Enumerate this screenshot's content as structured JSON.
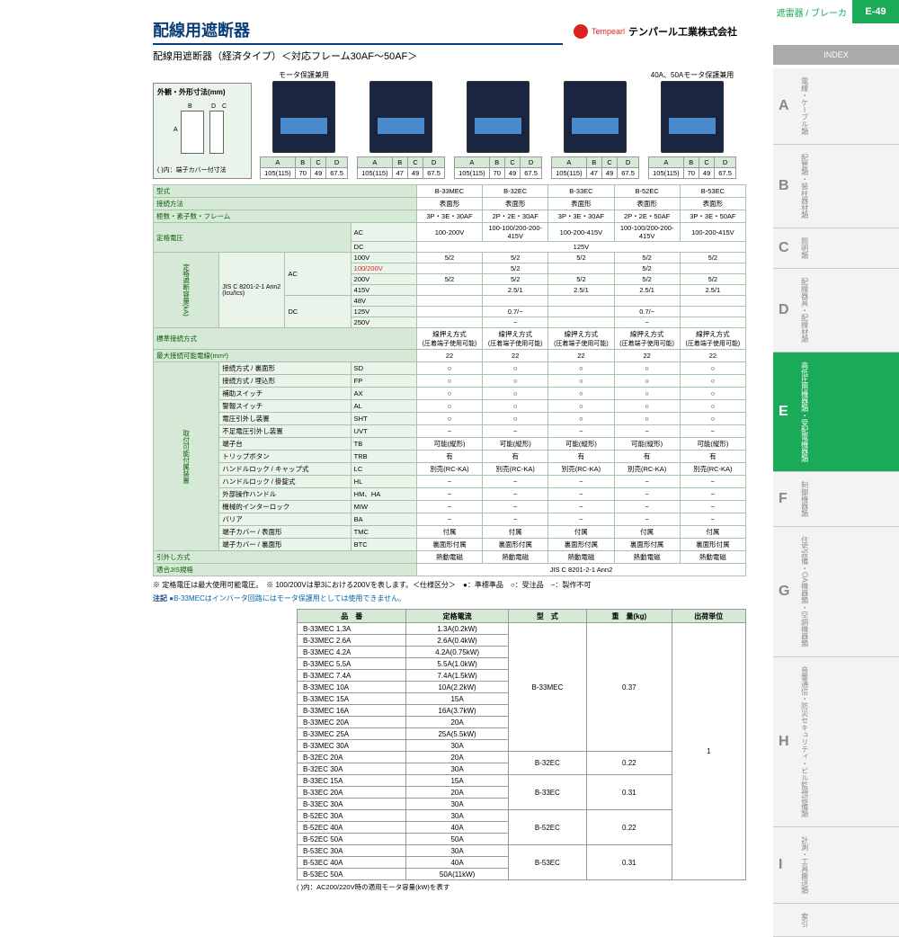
{
  "header": {
    "category": "遮雷器 / ブレーカ",
    "code": "E-49"
  },
  "title": "配線用遮断器",
  "brand": {
    "en": "Tempearl",
    "jp": "テンパール工業株式会社"
  },
  "subtitle": "配線用遮断器（経済タイプ）＜対応フレーム30AF～50AF＞",
  "dimbox": {
    "title": "外観・外形寸法(mm)",
    "note": "( )内：端子カバー付寸法"
  },
  "products": [
    {
      "cap": "モータ保護兼用",
      "dims": [
        "105(115)",
        "70",
        "49",
        "67.5"
      ]
    },
    {
      "cap": "",
      "dims": [
        "105(115)",
        "47",
        "49",
        "67.5"
      ]
    },
    {
      "cap": "",
      "dims": [
        "105(115)",
        "70",
        "49",
        "67.5"
      ]
    },
    {
      "cap": "",
      "dims": [
        "105(115)",
        "47",
        "49",
        "67.5"
      ]
    },
    {
      "cap": "40A、50Aモータ保護兼用",
      "dims": [
        "105(115)",
        "70",
        "49",
        "67.5"
      ]
    }
  ],
  "dim_headers": [
    "A",
    "B",
    "C",
    "D"
  ],
  "spec_models": [
    "B-33MEC",
    "B-32EC",
    "B-33EC",
    "B-52EC",
    "B-53EC"
  ],
  "spec_rows": [
    {
      "h": "型式",
      "vals": [
        "B-33MEC",
        "B-32EC",
        "B-33EC",
        "B-52EC",
        "B-53EC"
      ]
    },
    {
      "h": "接続方法",
      "vals": [
        "表面形",
        "表面形",
        "表面形",
        "表面形",
        "表面形"
      ]
    },
    {
      "h": "極数・素子数・フレーム",
      "vals": [
        "3P・3E・30AF",
        "2P・2E・30AF",
        "3P・3E・30AF",
        "2P・2E・50AF",
        "3P・3E・50AF"
      ]
    }
  ],
  "voltage_rows": {
    "ac_label": "AC",
    "dc_label": "DC",
    "ac_vals": [
      "100-200V",
      "100-100/200-200-415V",
      "100-200-415V",
      "100-100/200-200-415V",
      "100-200-415V"
    ],
    "dc_vals": "125V"
  },
  "cap_label": "定格遮断容量(kA)",
  "cap_std": "JIS C 8201-2-1 Ann2 (Icu/Ics)",
  "cap_rows": [
    {
      "type": "AC",
      "v": "100V",
      "vals": [
        "5/2",
        "5/2",
        "5/2",
        "5/2",
        "5/2"
      ]
    },
    {
      "type": "AC",
      "v": "100/200V",
      "vals": [
        "",
        "5/2",
        "",
        "5/2",
        ""
      ]
    },
    {
      "type": "AC",
      "v": "200V",
      "vals": [
        "5/2",
        "5/2",
        "5/2",
        "5/2",
        "5/2"
      ]
    },
    {
      "type": "AC",
      "v": "415V",
      "vals": [
        "",
        "2.5/1",
        "2.5/1",
        "2.5/1",
        "2.5/1"
      ]
    },
    {
      "type": "DC",
      "v": "48V",
      "vals": [
        "",
        "",
        "",
        "",
        ""
      ]
    },
    {
      "type": "DC",
      "v": "125V",
      "vals": [
        "",
        "0.7/−",
        "",
        "0.7/−",
        ""
      ]
    },
    {
      "type": "DC",
      "v": "250V",
      "vals": [
        "",
        "−",
        "",
        "−",
        ""
      ]
    }
  ],
  "std_conn": {
    "h": "標準接続方式",
    "sub": "(圧着端子使用可能)",
    "val": "線押え方式"
  },
  "max_wire": {
    "h": "最大接続可能電線(mm²)",
    "val": "22"
  },
  "acc_group_label": "取付可能付属装置",
  "acc_rows": [
    {
      "g": "接続方式",
      "h": "裏面形",
      "code": "SD",
      "vals": [
        "○",
        "○",
        "○",
        "○",
        "○"
      ]
    },
    {
      "g": "接続方式",
      "h": "埋込形",
      "code": "FP",
      "vals": [
        "○",
        "○",
        "○",
        "○",
        "○"
      ]
    },
    {
      "g": "",
      "h": "補助スイッチ",
      "code": "AX",
      "vals": [
        "○",
        "○",
        "○",
        "○",
        "○"
      ]
    },
    {
      "g": "",
      "h": "警報スイッチ",
      "code": "AL",
      "vals": [
        "○",
        "○",
        "○",
        "○",
        "○"
      ]
    },
    {
      "g": "",
      "h": "電圧引外し装置",
      "code": "SHT",
      "vals": [
        "○",
        "○",
        "○",
        "○",
        "○"
      ]
    },
    {
      "g": "",
      "h": "不足電圧引外し装置",
      "code": "UVT",
      "vals": [
        "−",
        "−",
        "−",
        "−",
        "−"
      ]
    },
    {
      "g": "",
      "h": "端子台",
      "code": "TB",
      "vals": [
        "可能(縦形)",
        "可能(縦形)",
        "可能(縦形)",
        "可能(縦形)",
        "可能(縦形)"
      ]
    },
    {
      "g": "",
      "h": "トリップボタン",
      "code": "TRB",
      "vals": [
        "有",
        "有",
        "有",
        "有",
        "有"
      ]
    },
    {
      "g": "ハンドルロック",
      "h": "キャップ式",
      "code": "LC",
      "vals": [
        "別売(RC-KA)",
        "別売(RC-KA)",
        "別売(RC-KA)",
        "別売(RC-KA)",
        "別売(RC-KA)"
      ]
    },
    {
      "g": "ハンドルロック",
      "h": "掛錠式",
      "code": "HL",
      "vals": [
        "−",
        "−",
        "−",
        "−",
        "−"
      ]
    },
    {
      "g": "",
      "h": "外部操作ハンドル",
      "code": "HM、HA",
      "vals": [
        "−",
        "−",
        "−",
        "−",
        "−"
      ]
    },
    {
      "g": "",
      "h": "機械的インターロック",
      "code": "MIW",
      "vals": [
        "−",
        "−",
        "−",
        "−",
        "−"
      ]
    },
    {
      "g": "",
      "h": "バリア",
      "code": "BA",
      "vals": [
        "−",
        "−",
        "−",
        "−",
        "−"
      ]
    },
    {
      "g": "端子カバー",
      "h": "表面形",
      "code": "TMC",
      "vals": [
        "付属",
        "付属",
        "付属",
        "付属",
        "付属"
      ]
    },
    {
      "g": "端子カバー",
      "h": "裏面形",
      "code": "BTC",
      "vals": [
        "裏面形付属",
        "裏面形付属",
        "裏面形付属",
        "裏面形付属",
        "裏面形付属"
      ]
    }
  ],
  "trip": {
    "h": "引外し方式",
    "vals": [
      "熱動電磁",
      "熱動電磁",
      "熱動電磁",
      "熱動電磁",
      "熱動電磁"
    ]
  },
  "jis": {
    "h": "適合JIS規格",
    "val": "JIS C 8201-2-1 Ann2"
  },
  "footnote1": "※ 定格電圧は最大使用可能電圧。　※ 100/200Vは単3における200Vを表します。＜仕様区分＞　●：準標準品　○：受注品　−：製作不可",
  "note_label": "注記",
  "note_text": "●B-33MECはインバータ回路にはモータ保護用としては使用できません。",
  "pl_headers": [
    "品　番",
    "定格電流",
    "型　式",
    "重　量(kg)",
    "出荷単位"
  ],
  "pl_groups": [
    {
      "model": "B-33MEC",
      "weight": "0.37",
      "rows": [
        [
          "B-33MEC 1.3A",
          "1.3A(0.2kW)"
        ],
        [
          "B-33MEC 2.6A",
          "2.6A(0.4kW)"
        ],
        [
          "B-33MEC 4.2A",
          "4.2A(0.75kW)"
        ],
        [
          "B-33MEC 5.5A",
          "5.5A(1.0kW)"
        ],
        [
          "B-33MEC 7.4A",
          "7.4A(1.5kW)"
        ],
        [
          "B-33MEC 10A",
          "10A(2.2kW)"
        ],
        [
          "B-33MEC 15A",
          "15A"
        ],
        [
          "B-33MEC 16A",
          "16A(3.7kW)"
        ],
        [
          "B-33MEC 20A",
          "20A"
        ],
        [
          "B-33MEC 25A",
          "25A(5.5kW)"
        ],
        [
          "B-33MEC 30A",
          "30A"
        ]
      ]
    },
    {
      "model": "B-32EC",
      "weight": "0.22",
      "rows": [
        [
          "B-32EC 20A",
          "20A"
        ],
        [
          "B-32EC 30A",
          "30A"
        ]
      ]
    },
    {
      "model": "B-33EC",
      "weight": "0.31",
      "rows": [
        [
          "B-33EC 15A",
          "15A"
        ],
        [
          "B-33EC 20A",
          "20A"
        ],
        [
          "B-33EC 30A",
          "30A"
        ]
      ]
    },
    {
      "model": "B-52EC",
      "weight": "0.22",
      "rows": [
        [
          "B-52EC 30A",
          "30A"
        ],
        [
          "B-52EC 40A",
          "40A"
        ],
        [
          "B-52EC 50A",
          "50A"
        ]
      ]
    },
    {
      "model": "B-53EC",
      "weight": "0.31",
      "rows": [
        [
          "B-53EC 30A",
          "30A"
        ],
        [
          "B-53EC 40A",
          "40A"
        ],
        [
          "B-53EC 50A",
          "50A(11kW)"
        ]
      ]
    }
  ],
  "pl_unit": "1",
  "pl_paren": "( )内：AC200/220V時の適用モータ容量(kW)を表す",
  "side_top": "INDEX",
  "side": [
    {
      "l": "A",
      "t": "電線・ケーブル類"
    },
    {
      "l": "B",
      "t": "配管類・装柱器材類"
    },
    {
      "l": "C",
      "t": "照明類"
    },
    {
      "l": "D",
      "t": "配線器具・配線材類"
    },
    {
      "l": "E",
      "t": "高低圧用機器類・受配電機器類",
      "active": true
    },
    {
      "l": "F",
      "t": "制御機器類"
    },
    {
      "l": "G",
      "t": "住宅設備・OA機器類・空調機器類"
    },
    {
      "l": "H",
      "t": "音響通信・防災セキュリティ・ビル監視設備類"
    },
    {
      "l": "I",
      "t": "計測・工具搬送類"
    },
    {
      "l": "",
      "t": "索引"
    }
  ]
}
